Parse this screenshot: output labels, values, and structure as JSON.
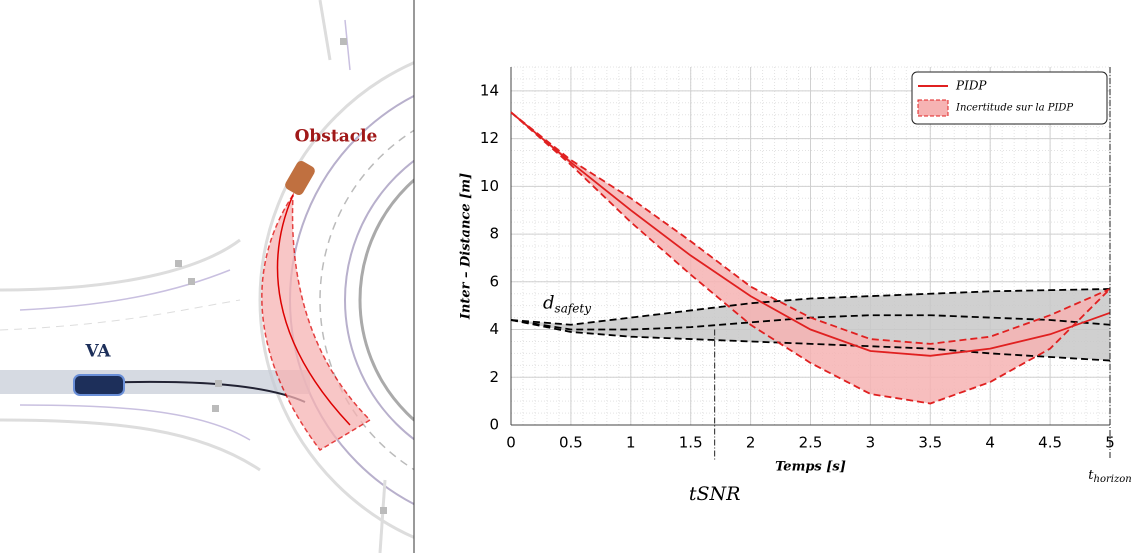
{
  "illustration": {
    "obstacle_label": "Obstacle",
    "vehicle_label": "VA"
  },
  "chart_data": {
    "type": "line",
    "ylabel": "Inter – Distance [m]",
    "xlabel": "Temps [s]",
    "xlim": [
      0,
      5
    ],
    "ylim": [
      0,
      15
    ],
    "xticks": [
      0,
      0.5,
      1,
      1.5,
      2,
      2.5,
      3,
      3.5,
      4,
      4.5,
      5
    ],
    "yticks": [
      0,
      2,
      4,
      6,
      8,
      10,
      12,
      14
    ],
    "grid": true,
    "legend": "upper right",
    "x": [
      0,
      0.5,
      1,
      1.5,
      2,
      2.5,
      3,
      3.5,
      4,
      4.5,
      5
    ],
    "series": [
      {
        "name": "PIDP",
        "color": "#e02020",
        "values": [
          13.1,
          11.0,
          9.0,
          7.1,
          5.4,
          4.0,
          3.1,
          2.9,
          3.2,
          3.8,
          4.7
        ]
      },
      {
        "name": "Incertitude sur la PIDP",
        "color": "#e02020",
        "fill": "#f6b3b3",
        "upper": [
          13.1,
          11.1,
          9.5,
          7.7,
          5.8,
          4.5,
          3.6,
          3.4,
          3.7,
          4.6,
          5.7
        ],
        "lower": [
          13.1,
          10.9,
          8.5,
          6.3,
          4.2,
          2.6,
          1.3,
          0.9,
          1.8,
          3.2,
          5.7
        ]
      }
    ],
    "safety_band": {
      "color": "#000000",
      "fill": "#c8c8c8",
      "upper": [
        4.4,
        4.2,
        4.5,
        4.8,
        5.1,
        5.3,
        5.4,
        5.5,
        5.6,
        5.65,
        5.7
      ],
      "middle": [
        4.4,
        4.0,
        4.0,
        4.1,
        4.3,
        4.5,
        4.6,
        4.6,
        4.5,
        4.4,
        4.2
      ],
      "lower": [
        4.4,
        3.9,
        3.7,
        3.6,
        3.5,
        3.4,
        3.3,
        3.2,
        3.0,
        2.85,
        2.7
      ]
    },
    "safety_label": {
      "text": "d",
      "sub": "safety"
    },
    "markers": [
      {
        "text": "tSNR",
        "x": 1.7
      },
      {
        "text": "t",
        "sub": "horizon",
        "x": 5
      }
    ]
  }
}
